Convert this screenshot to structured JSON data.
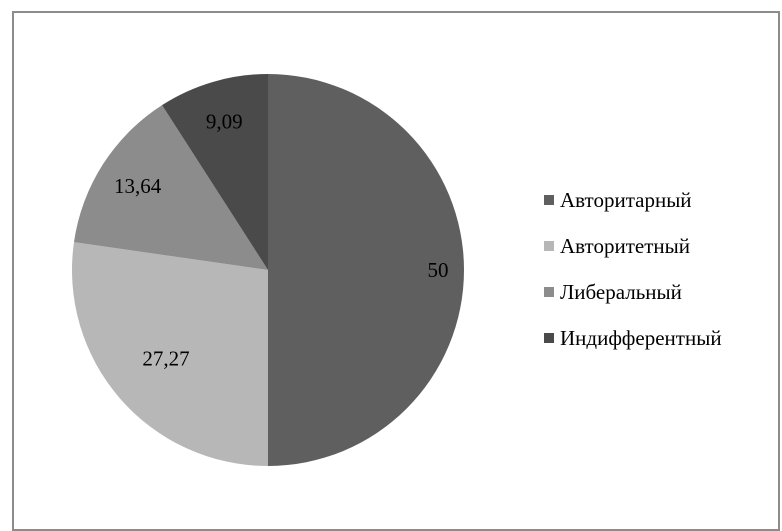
{
  "chart_data": {
    "type": "pie",
    "categories": [
      "Авторитарный",
      "Авторитетный",
      "Либеральный",
      "Индифферентный"
    ],
    "values": [
      50,
      27.27,
      13.64,
      9.09
    ],
    "data_labels": [
      "50",
      "27,27",
      "13,64",
      "9,09"
    ],
    "colors": [
      "#5f5f5f",
      "#b7b7b7",
      "#8c8c8c",
      "#4a4a4a"
    ],
    "legend_position": "right",
    "start_angle_deg": 0,
    "direction": "clockwise"
  }
}
